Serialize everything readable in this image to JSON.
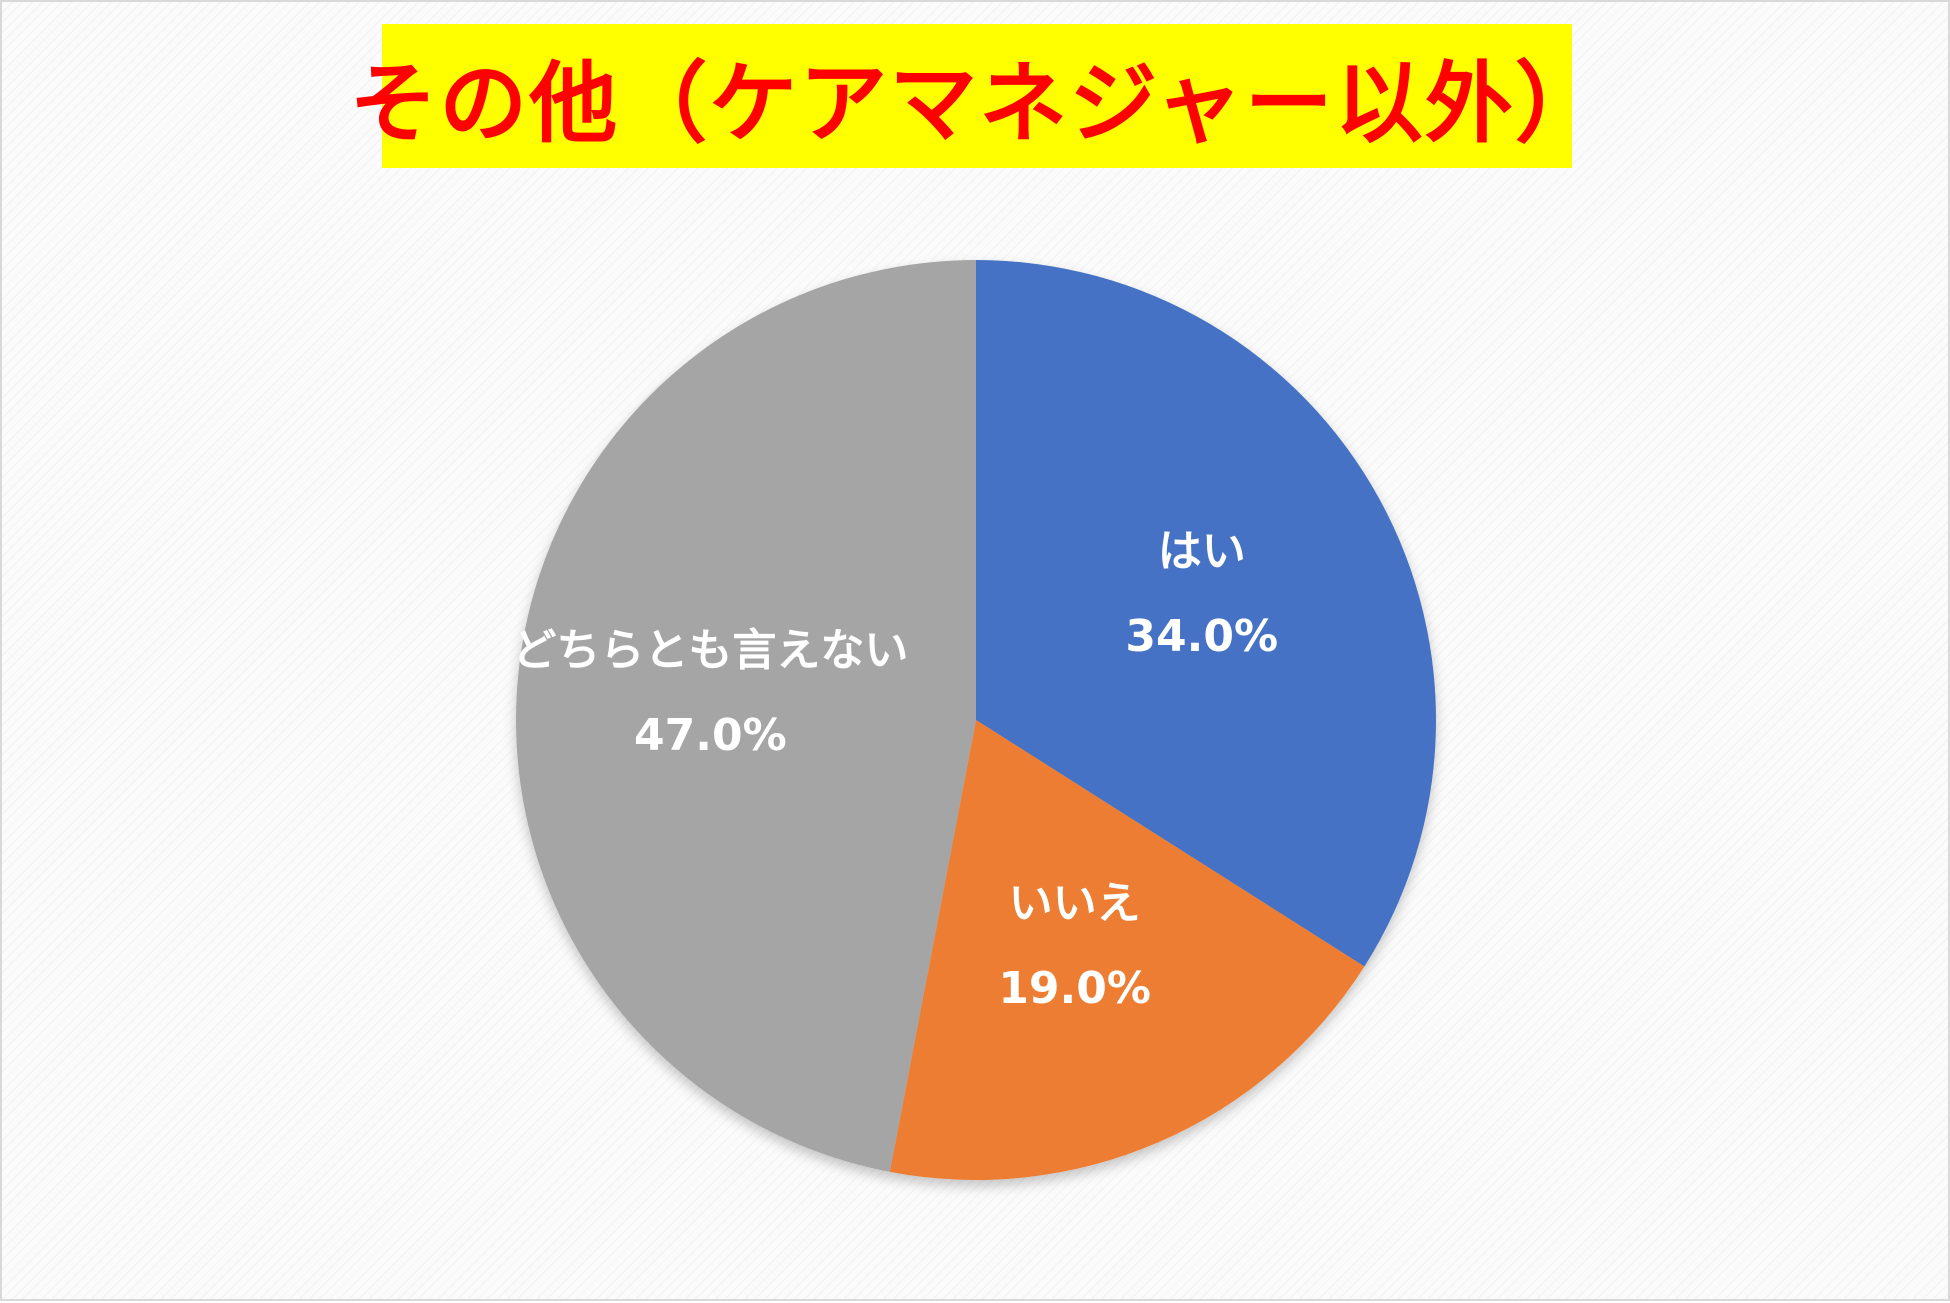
{
  "chart_data": {
    "type": "pie",
    "title": "その他（ケアマネジャー以外）",
    "slices": [
      {
        "label": "はい",
        "value": 34.0,
        "value_label": "34.0%",
        "color": "#4472c4"
      },
      {
        "label": "いいえ",
        "value": 19.0,
        "value_label": "19.0%",
        "color": "#ed7d31"
      },
      {
        "label": "どちらとも言えない",
        "value": 47.0,
        "value_label": "47.0%",
        "color": "#a5a5a5"
      }
    ],
    "start_angle": "12 o'clock",
    "direction": "clockwise",
    "title_background": "#ffff00",
    "title_color": "#ff0000"
  }
}
